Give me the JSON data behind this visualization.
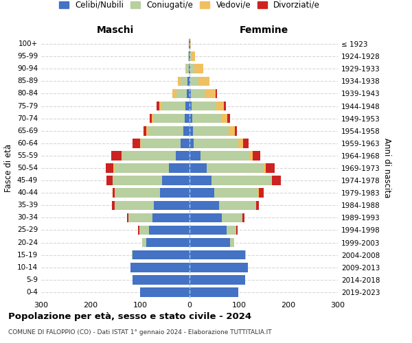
{
  "age_groups": [
    "0-4",
    "5-9",
    "10-14",
    "15-19",
    "20-24",
    "25-29",
    "30-34",
    "35-39",
    "40-44",
    "45-49",
    "50-54",
    "55-59",
    "60-64",
    "65-69",
    "70-74",
    "75-79",
    "80-84",
    "85-89",
    "90-94",
    "95-99",
    "100+"
  ],
  "birth_years": [
    "2019-2023",
    "2014-2018",
    "2009-2013",
    "2004-2008",
    "1999-2003",
    "1994-1998",
    "1989-1993",
    "1984-1988",
    "1979-1983",
    "1974-1978",
    "1969-1973",
    "1964-1968",
    "1959-1963",
    "1954-1958",
    "1949-1953",
    "1944-1948",
    "1939-1943",
    "1934-1938",
    "1929-1933",
    "1924-1928",
    "≤ 1923"
  ],
  "maschi": {
    "celibi": [
      100,
      115,
      120,
      115,
      88,
      82,
      75,
      72,
      60,
      55,
      42,
      28,
      18,
      12,
      10,
      8,
      5,
      4,
      2,
      1,
      1
    ],
    "coniugati": [
      0,
      0,
      0,
      2,
      8,
      20,
      48,
      80,
      90,
      100,
      110,
      108,
      80,
      72,
      62,
      48,
      22,
      14,
      5,
      2,
      0
    ],
    "vedovi": [
      0,
      0,
      0,
      0,
      0,
      0,
      0,
      0,
      1,
      1,
      2,
      2,
      2,
      4,
      4,
      5,
      8,
      5,
      2,
      0,
      0
    ],
    "divorziati": [
      0,
      0,
      0,
      0,
      0,
      2,
      3,
      5,
      5,
      12,
      15,
      20,
      15,
      5,
      5,
      5,
      0,
      0,
      0,
      0,
      0
    ]
  },
  "femmine": {
    "nubili": [
      98,
      112,
      118,
      112,
      82,
      75,
      65,
      60,
      50,
      45,
      35,
      22,
      8,
      7,
      5,
      4,
      3,
      2,
      2,
      1,
      1
    ],
    "coniugate": [
      0,
      0,
      0,
      2,
      8,
      20,
      42,
      75,
      88,
      120,
      115,
      100,
      90,
      72,
      60,
      50,
      28,
      16,
      8,
      2,
      0
    ],
    "vedove": [
      0,
      0,
      0,
      0,
      0,
      0,
      0,
      0,
      2,
      2,
      4,
      6,
      10,
      12,
      12,
      15,
      22,
      22,
      18,
      8,
      2
    ],
    "divorziate": [
      0,
      0,
      0,
      0,
      0,
      2,
      4,
      5,
      10,
      18,
      18,
      15,
      12,
      5,
      5,
      4,
      2,
      0,
      0,
      0,
      0
    ]
  },
  "colors": {
    "celibi": "#4472c4",
    "coniugati": "#b8cfa0",
    "vedovi": "#f0c060",
    "divorziati": "#cc2222"
  },
  "xlim": 300,
  "title": "Popolazione per età, sesso e stato civile - 2024",
  "subtitle": "COMUNE DI FALOPPIO (CO) - Dati ISTAT 1° gennaio 2024 - Elaborazione TUTTITALIA.IT",
  "ylabel_left": "Fasce di età",
  "ylabel_right": "Anni di nascita",
  "xlabel_maschi": "Maschi",
  "xlabel_femmine": "Femmine",
  "legend_labels": [
    "Celibi/Nubili",
    "Coniugati/e",
    "Vedovi/e",
    "Divorziati/e"
  ],
  "background_color": "#ffffff",
  "bar_height": 0.75
}
